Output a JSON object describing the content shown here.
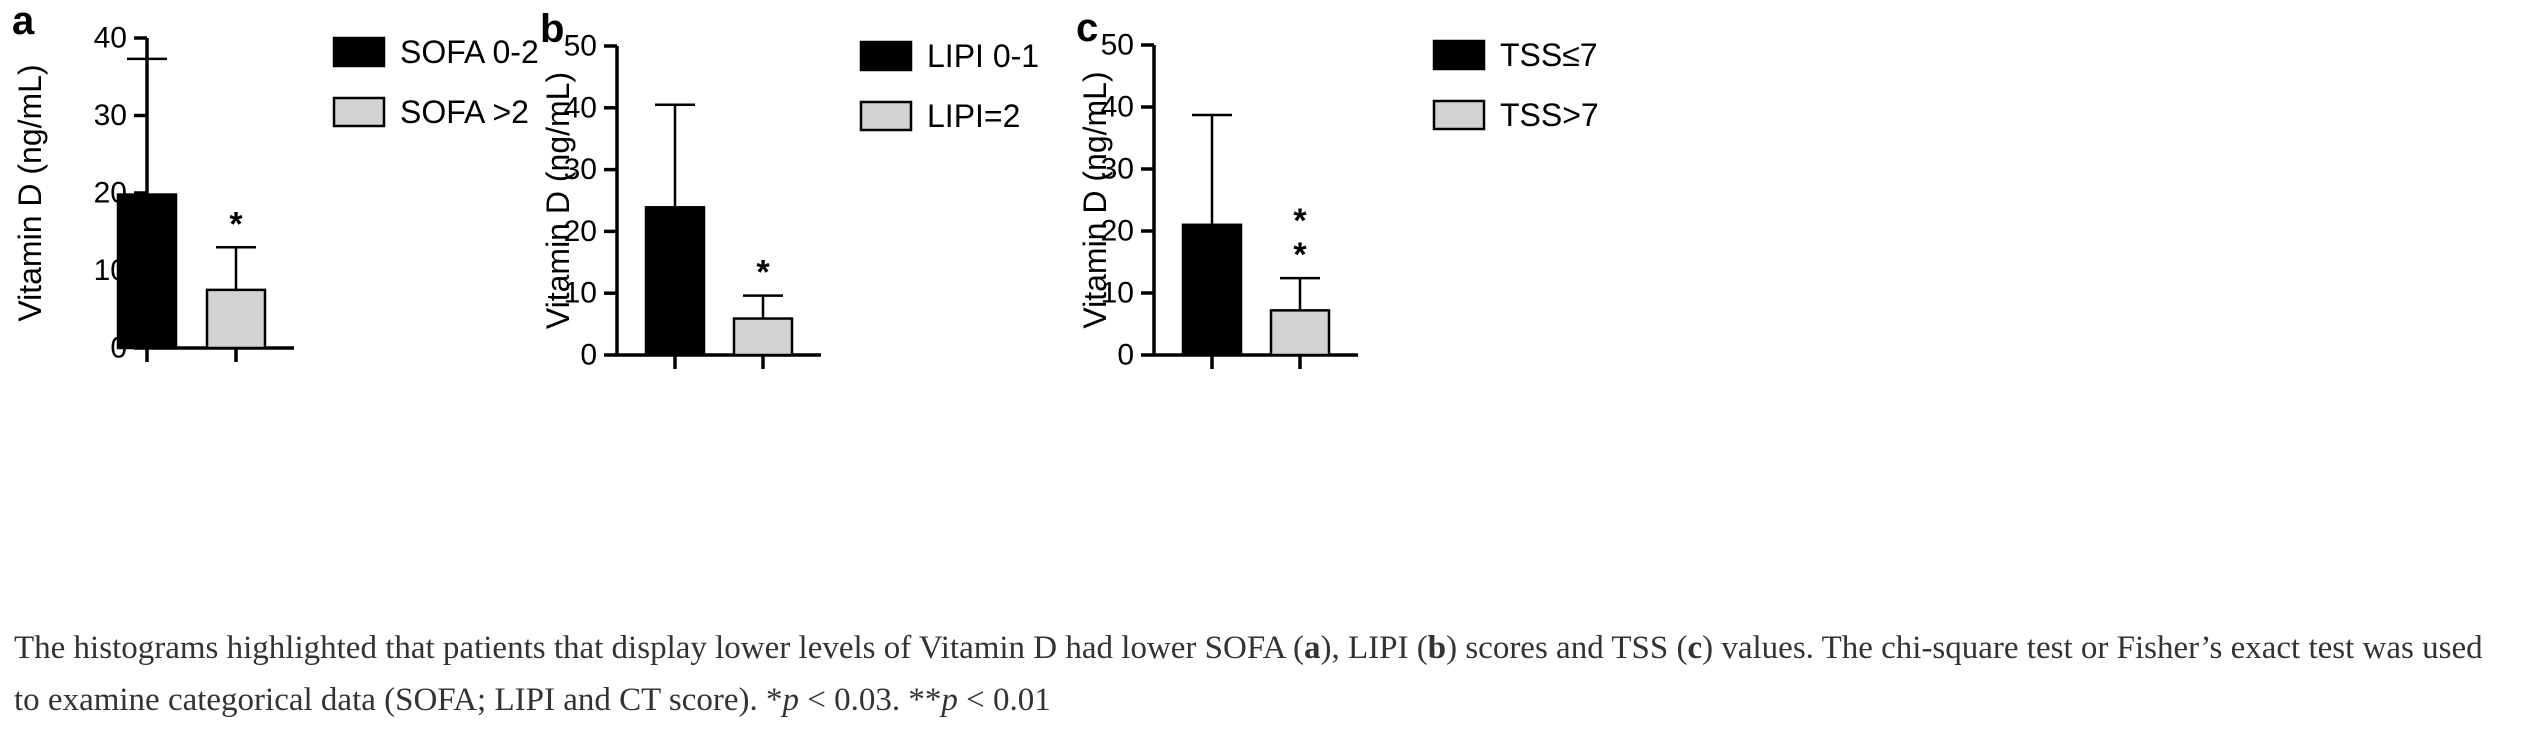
{
  "colors": {
    "group1": "#000000",
    "group2": "#d3d3d3",
    "axis": "#000000"
  },
  "chart_data": [
    {
      "panel": "a",
      "type": "bar",
      "ylabel": "Vitamin D (ng/mL)",
      "ylim": [
        0,
        40
      ],
      "yticks": [
        0,
        10,
        20,
        30,
        40
      ],
      "categories": [
        "SOFA 0-2",
        "SOFA >2"
      ],
      "values": [
        19.8,
        7.5
      ],
      "error_upper": [
        37.3,
        13.0
      ],
      "significance": [
        "",
        "*"
      ],
      "legend": [
        "SOFA 0-2",
        "SOFA >2"
      ]
    },
    {
      "panel": "b",
      "type": "bar",
      "ylabel": "Vitamin D (ng/mL)",
      "ylim": [
        0,
        50
      ],
      "yticks": [
        0,
        10,
        20,
        30,
        40,
        50
      ],
      "categories": [
        "LIPI 0-1",
        "LIPI=2"
      ],
      "values": [
        23.9,
        5.9
      ],
      "error_upper": [
        40.5,
        9.6
      ],
      "significance": [
        "",
        "*"
      ],
      "legend": [
        "LIPI 0-1",
        "LIPI=2"
      ]
    },
    {
      "panel": "c",
      "type": "bar",
      "ylabel": "Vitamin D (ng/mL)",
      "ylim": [
        0,
        50
      ],
      "yticks": [
        0,
        10,
        20,
        30,
        40,
        50
      ],
      "categories": [
        "TSS≤7",
        "TSS>7"
      ],
      "values": [
        21.0,
        7.2
      ],
      "error_upper": [
        38.7,
        12.4
      ],
      "significance": [
        "",
        "**"
      ],
      "legend": [
        "TSS≤7",
        "TSS>7"
      ]
    }
  ],
  "caption": {
    "p1": "The histograms highlighted that patients that display lower levels of Vitamin D had lower SOFA (",
    "a": "a",
    "p2": "), LIPI (",
    "b": "b",
    "p3": ") scores and TSS (",
    "c": "c",
    "p4": ") values. The chi-square test or Fisher’s exact test was used to examine categorical data (SOFA; LIPI and CT score). *",
    "pvar1": "p",
    "p5": " < 0.03. **",
    "pvar2": "p",
    "p6": " < 0.01"
  }
}
